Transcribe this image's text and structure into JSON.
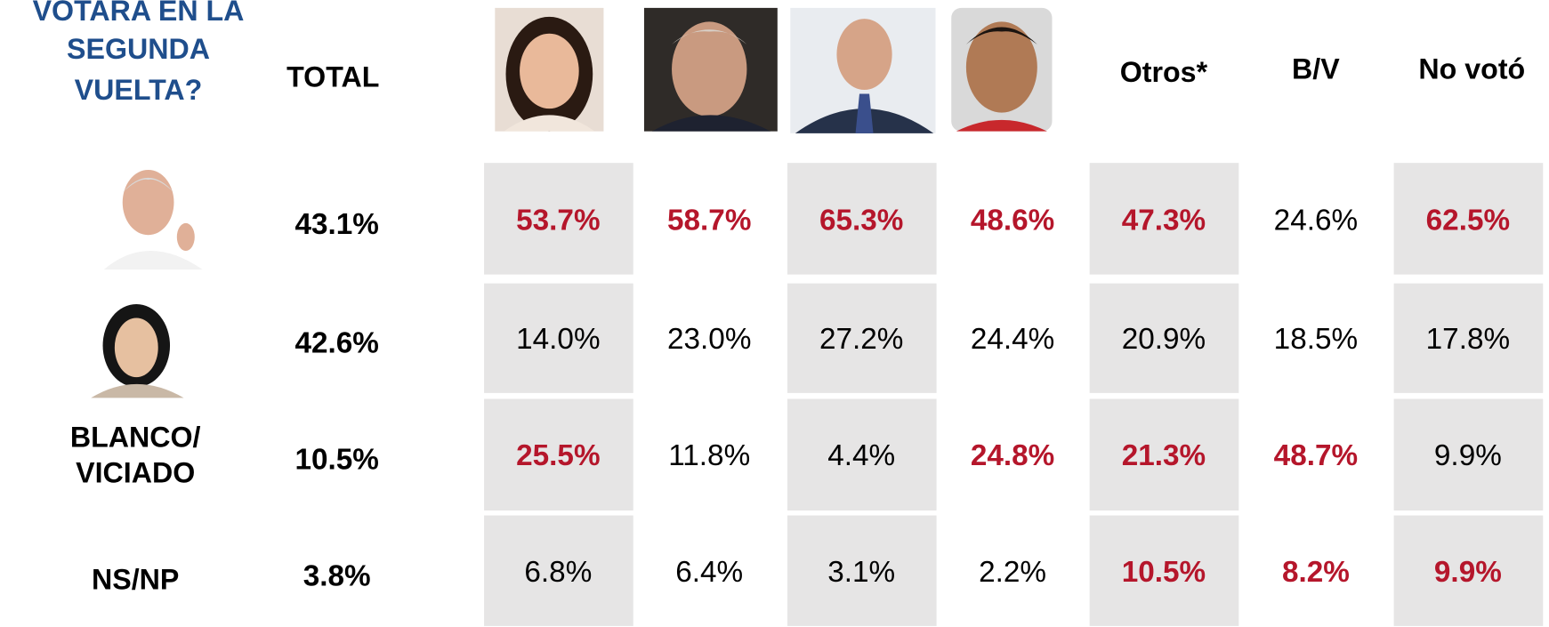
{
  "header": {
    "question": [
      "VOTARA EN LA",
      "SEGUNDA",
      "VUELTA?"
    ],
    "columns": [
      "TOTAL",
      "Otros*",
      "B/V",
      "No votó"
    ]
  },
  "table": {
    "rows": [
      {
        "label": null,
        "total": "43.1%",
        "cells": [
          {
            "text": "53.7%",
            "highlight": true
          },
          {
            "text": "58.7%",
            "highlight": true
          },
          {
            "text": "65.3%",
            "highlight": true
          },
          {
            "text": "48.6%",
            "highlight": true
          },
          {
            "text": "47.3%",
            "highlight": true
          },
          {
            "text": "24.6%",
            "highlight": false
          },
          {
            "text": "62.5%",
            "highlight": true
          }
        ]
      },
      {
        "label": null,
        "total": "42.6%",
        "cells": [
          {
            "text": "14.0%",
            "highlight": false
          },
          {
            "text": "23.0%",
            "highlight": false
          },
          {
            "text": "27.2%",
            "highlight": false
          },
          {
            "text": "24.4%",
            "highlight": false
          },
          {
            "text": "20.9%",
            "highlight": false
          },
          {
            "text": "18.5%",
            "highlight": false
          },
          {
            "text": "17.8%",
            "highlight": false
          }
        ]
      },
      {
        "label": [
          "BLANCO/",
          "VICIADO"
        ],
        "total": "10.5%",
        "cells": [
          {
            "text": "25.5%",
            "highlight": true
          },
          {
            "text": "11.8%",
            "highlight": false
          },
          {
            "text": "4.4%",
            "highlight": false
          },
          {
            "text": "24.8%",
            "highlight": true
          },
          {
            "text": "21.3%",
            "highlight": true
          },
          {
            "text": "48.7%",
            "highlight": true
          },
          {
            "text": "9.9%",
            "highlight": false
          }
        ]
      },
      {
        "label": [
          "NS/NP"
        ],
        "total": "3.8%",
        "cells": [
          {
            "text": "6.8%",
            "highlight": false
          },
          {
            "text": "6.4%",
            "highlight": false
          },
          {
            "text": "3.1%",
            "highlight": false
          },
          {
            "text": "2.2%",
            "highlight": false
          },
          {
            "text": "10.5%",
            "highlight": true
          },
          {
            "text": "8.2%",
            "highlight": true
          },
          {
            "text": "9.9%",
            "highlight": true
          }
        ]
      }
    ]
  }
}
